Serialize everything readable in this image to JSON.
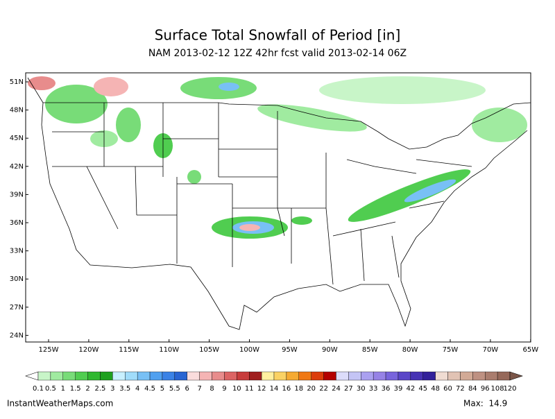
{
  "header": {
    "title": "Surface Total Snowfall of Period [in]",
    "subtitle": "NAM 2013-02-12 12Z 42hr fcst valid 2013-02-14 06Z"
  },
  "map": {
    "lat_labels": [
      "51N",
      "48N",
      "45N",
      "42N",
      "39N",
      "36N",
      "33N",
      "30N",
      "27N",
      "24N"
    ],
    "lon_labels": [
      "125W",
      "120W",
      "115W",
      "110W",
      "105W",
      "100W",
      "95W",
      "90W",
      "85W",
      "80W",
      "75W",
      "70W",
      "65W"
    ]
  },
  "colorbar": {
    "levels": [
      0.1,
      0.5,
      1,
      1.5,
      2,
      2.5,
      3,
      3.5,
      4,
      4.5,
      5,
      5.5,
      6,
      7,
      8,
      9,
      10,
      11,
      12,
      14,
      16,
      18,
      20,
      22,
      24,
      27,
      30,
      33,
      36,
      39,
      42,
      45,
      48,
      60,
      72,
      84,
      96,
      108,
      120
    ],
    "colors": [
      "#c8f5c8",
      "#a0eba0",
      "#78dc78",
      "#50cd50",
      "#30b830",
      "#1ea01e",
      "#c8f0ff",
      "#a0dcfa",
      "#78c0f5",
      "#50a0f0",
      "#3a82e6",
      "#2864d2",
      "#fadcdc",
      "#f5b4b4",
      "#e88c8c",
      "#dc6464",
      "#c83c3c",
      "#a01e1e",
      "#fff0a0",
      "#fad264",
      "#f5aa32",
      "#f07814",
      "#dc3c0a",
      "#b40000",
      "#dcdcfa",
      "#c4c4f5",
      "#aaa0f0",
      "#9682e6",
      "#7864dc",
      "#5a46c8",
      "#4632b4",
      "#32209a",
      "#f0dcd2",
      "#e1c3b4",
      "#d2aa96",
      "#be9182",
      "#aa7d6e",
      "#96695a"
    ]
  },
  "footer": {
    "source": "InstantWeatherMaps.com",
    "max": "Max:  14.9"
  }
}
